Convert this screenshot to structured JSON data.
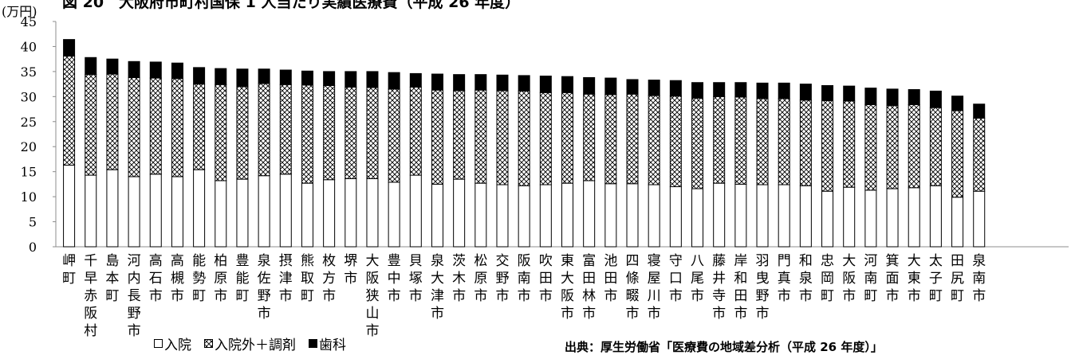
{
  "chart_data": {
    "type": "bar",
    "stacked": true,
    "title": "図 20　大阪府市町村国保 1 人当たり実績医療費（平成 26 年度）",
    "unit_label": "(万円)",
    "ylim": [
      0,
      45
    ],
    "yticks": [
      0,
      5,
      10,
      15,
      20,
      25,
      30,
      35,
      40,
      45
    ],
    "grid": false,
    "legend_position": "bottom-left",
    "categories": [
      "岬町",
      "千早赤阪村",
      "島本町",
      "河内長野市",
      "高石市",
      "高槻市",
      "能勢町",
      "柏原市",
      "豊能町",
      "泉佐野市",
      "摂津市",
      "熊取町",
      "枚方市",
      "堺市",
      "大阪狭山市",
      "豊中市",
      "貝塚市",
      "泉大津市",
      "茨木市",
      "松原市",
      "交野市",
      "阪南市",
      "吹田市",
      "東大阪市",
      "富田林市",
      "池田市",
      "四條畷市",
      "寝屋川市",
      "守口市",
      "八尾市",
      "藤井寺市",
      "岸和田市",
      "羽曳野市",
      "門真市",
      "和泉市",
      "忠岡町",
      "大阪市",
      "河南町",
      "箕面市",
      "大東市",
      "太子町",
      "田尻町",
      "泉南市"
    ],
    "series": [
      {
        "name": "入院",
        "values": [
          16.3,
          14.3,
          15.4,
          14.0,
          14.5,
          14.0,
          15.4,
          13.2,
          13.5,
          14.2,
          14.5,
          12.7,
          13.4,
          13.6,
          13.6,
          12.9,
          14.3,
          12.5,
          13.5,
          12.7,
          12.4,
          12.2,
          12.4,
          12.7,
          13.2,
          12.6,
          12.6,
          12.4,
          12.0,
          11.6,
          12.7,
          12.5,
          12.4,
          12.4,
          12.2,
          11.1,
          11.9,
          11.3,
          11.6,
          11.8,
          12.2,
          9.9,
          11.1
        ]
      },
      {
        "name": "入院外＋調剤",
        "values": [
          21.8,
          20.1,
          19.1,
          19.8,
          19.2,
          19.6,
          17.1,
          19.2,
          18.5,
          18.4,
          17.9,
          19.6,
          18.8,
          18.3,
          18.2,
          18.6,
          17.6,
          18.8,
          17.7,
          18.6,
          18.8,
          18.9,
          18.4,
          18.1,
          17.3,
          17.8,
          17.9,
          17.8,
          18.1,
          18.1,
          17.3,
          17.4,
          17.2,
          17.2,
          17.1,
          18.1,
          17.2,
          17.1,
          16.6,
          16.6,
          15.6,
          17.3,
          14.6
        ]
      },
      {
        "name": "歯科",
        "values": [
          3.3,
          3.4,
          3.0,
          3.2,
          3.2,
          3.1,
          3.3,
          3.2,
          3.5,
          2.9,
          2.9,
          2.8,
          2.8,
          3.1,
          3.2,
          3.3,
          2.7,
          3.2,
          3.2,
          3.1,
          3.1,
          3.1,
          3.3,
          3.2,
          3.3,
          3.3,
          2.9,
          3.1,
          3.1,
          3.1,
          2.8,
          2.9,
          3.1,
          3.1,
          3.2,
          3.0,
          3.0,
          3.3,
          3.3,
          3.0,
          3.3,
          2.9,
          2.8
        ]
      }
    ],
    "source": "出典：厚生労働省「医療費の地域差分析（平成 26 年度）」"
  },
  "colors": {
    "inpatient": "#ffffff",
    "outpatient_pattern": "#000000",
    "dental": "#000000",
    "axis": "#8c8c8c"
  }
}
